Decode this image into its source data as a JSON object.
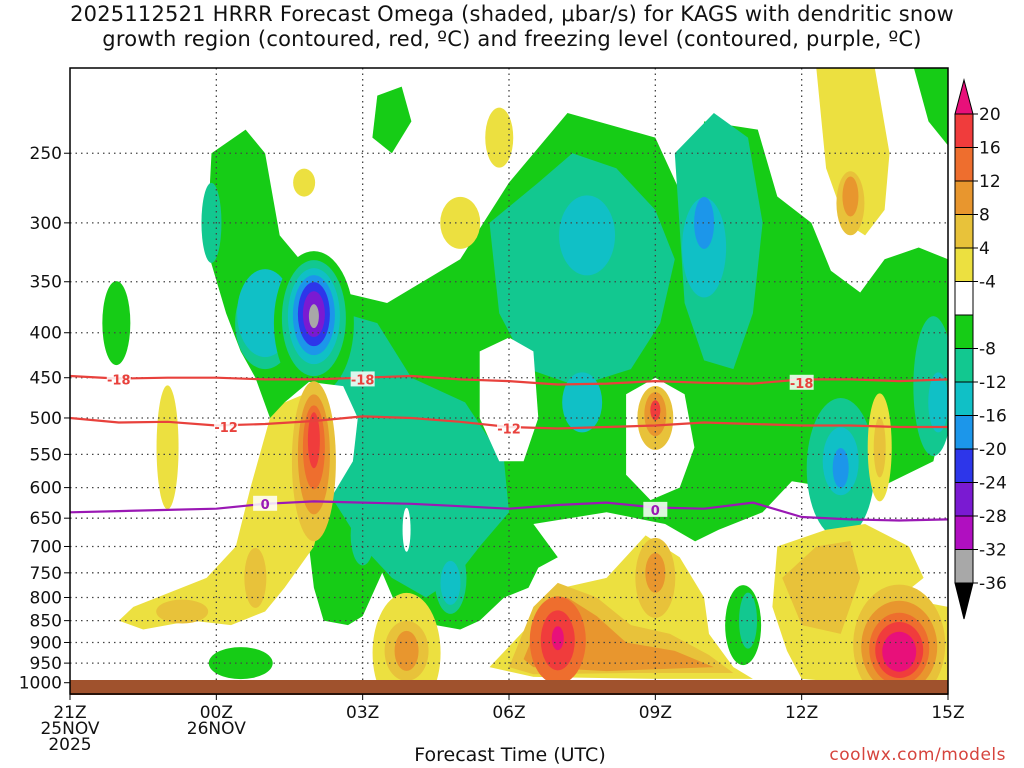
{
  "title": {
    "line1": "2025112521 HRRR Forecast Omega (shaded, μbar/s) for KAGS with dendritic snow",
    "line2": "growth region (contoured, red, ºC) and freezing level (contoured, purple, ºC)"
  },
  "credit": "coolwx.com/models",
  "chart_data": {
    "type": "time-height cross section",
    "xlabel": "Forecast Time (UTC)",
    "x_ticks": [
      {
        "hour": 0,
        "lines": [
          "21Z",
          "25NOV",
          "2025"
        ]
      },
      {
        "hour": 3,
        "lines": [
          "00Z",
          "26NOV"
        ]
      },
      {
        "hour": 6,
        "lines": [
          "03Z"
        ]
      },
      {
        "hour": 9,
        "lines": [
          "06Z"
        ]
      },
      {
        "hour": 12,
        "lines": [
          "09Z"
        ]
      },
      {
        "hour": 15,
        "lines": [
          "12Z"
        ]
      },
      {
        "hour": 18,
        "lines": [
          "15Z"
        ]
      }
    ],
    "xlim": [
      0,
      18
    ],
    "y_axis": "pressure (hPa), inverted",
    "y_ticks": [
      250,
      300,
      350,
      400,
      450,
      500,
      550,
      600,
      650,
      700,
      750,
      800,
      850,
      900,
      950,
      1000
    ],
    "ylim": [
      1030,
      200
    ],
    "grid": true,
    "colorbar": {
      "labels": [
        "20",
        "16",
        "12",
        "8",
        "4",
        "-4",
        "-8",
        "-12",
        "-16",
        "-20",
        "-24",
        "-28",
        "-32",
        "-36"
      ],
      "bins": [
        {
          "range": ">20",
          "color": "#e8107a"
        },
        {
          "range": "16 to 20",
          "color": "#f03c3c"
        },
        {
          "range": "12 to 16",
          "color": "#ee6e2e"
        },
        {
          "range": "8 to 12",
          "color": "#e8962e"
        },
        {
          "range": "4 to 8",
          "color": "#e8c23a"
        },
        {
          "range": "0 to 4",
          "color": "#ece040"
        },
        {
          "range": "-4 to 4",
          "color": "#ffffff"
        },
        {
          "range": "-8 to -4",
          "color": "#16cc16"
        },
        {
          "range": "-12 to -8",
          "color": "#12c890"
        },
        {
          "range": "-16 to -12",
          "color": "#10c0c6"
        },
        {
          "range": "-20 to -16",
          "color": "#1c96ea"
        },
        {
          "range": "-24 to -20",
          "color": "#2d36ea"
        },
        {
          "range": "-28 to -24",
          "color": "#7a1ad2"
        },
        {
          "range": "-32 to -28",
          "color": "#b00fc0"
        },
        {
          "range": "-36 to -32",
          "color": "#a8a8a8"
        },
        {
          "range": "<-36",
          "color": "#000000"
        }
      ]
    },
    "contours": [
      {
        "name": "dendritic -18C",
        "label": "-18",
        "color": "#e8413c",
        "points": [
          [
            0,
            448
          ],
          [
            1,
            451
          ],
          [
            2,
            450
          ],
          [
            3,
            450
          ],
          [
            4,
            452
          ],
          [
            5,
            452
          ],
          [
            6,
            450
          ],
          [
            7,
            448
          ],
          [
            8,
            452
          ],
          [
            9,
            454
          ],
          [
            10,
            458
          ],
          [
            11,
            457
          ],
          [
            12,
            454
          ],
          [
            13,
            456
          ],
          [
            14,
            457
          ],
          [
            15,
            452
          ],
          [
            16,
            452
          ],
          [
            17,
            454
          ],
          [
            18,
            452
          ]
        ]
      },
      {
        "name": "dendritic -12C",
        "label": "-12",
        "color": "#e8413c",
        "points": [
          [
            0,
            500
          ],
          [
            1,
            506
          ],
          [
            2,
            505
          ],
          [
            3,
            510
          ],
          [
            4,
            508
          ],
          [
            5,
            504
          ],
          [
            6,
            498
          ],
          [
            7,
            500
          ],
          [
            8,
            505
          ],
          [
            9,
            512
          ],
          [
            10,
            514
          ],
          [
            11,
            512
          ],
          [
            12,
            510
          ],
          [
            13,
            506
          ],
          [
            14,
            508
          ],
          [
            15,
            510
          ],
          [
            16,
            510
          ],
          [
            17,
            512
          ],
          [
            18,
            512
          ]
        ]
      },
      {
        "name": "freezing level 0C",
        "label": "0",
        "color": "#9a18b4",
        "points": [
          [
            0,
            640
          ],
          [
            1,
            638
          ],
          [
            2,
            636
          ],
          [
            3,
            634
          ],
          [
            4,
            626
          ],
          [
            5,
            622
          ],
          [
            6,
            624
          ],
          [
            7,
            626
          ],
          [
            8,
            630
          ],
          [
            9,
            634
          ],
          [
            10,
            628
          ],
          [
            11,
            624
          ],
          [
            12,
            632
          ],
          [
            13,
            634
          ],
          [
            14,
            624
          ],
          [
            15,
            648
          ],
          [
            16,
            652
          ],
          [
            17,
            654
          ],
          [
            18,
            652
          ]
        ]
      }
    ],
    "contour_label_positions": [
      {
        "label": "-18",
        "hour": 1.0,
        "p": 452
      },
      {
        "label": "-18",
        "hour": 6.0,
        "p": 452
      },
      {
        "label": "-18",
        "hour": 15.0,
        "p": 456
      },
      {
        "label": "-12",
        "hour": 3.2,
        "p": 512
      },
      {
        "label": "-12",
        "hour": 9.0,
        "p": 514
      },
      {
        "label": "0",
        "hour": 4.0,
        "p": 626
      },
      {
        "label": "0",
        "hour": 12.0,
        "p": 636
      }
    ],
    "omega_features": [
      {
        "value": -8,
        "color": "#16cc16",
        "desc": "broad ascent region 250-850 hPa"
      },
      {
        "value": -36,
        "color": "#a8a8a8",
        "hour": 5,
        "p": 385,
        "desc": "strongest ascent core near 02Z"
      },
      {
        "value": 20,
        "color": "#e8107a",
        "hour": 17,
        "p": 925,
        "desc": "strongest subsidence near 14Z"
      },
      {
        "value": 16,
        "color": "#f03c3c",
        "hour": 10,
        "p": 890,
        "desc": "subsidence maximum near 07Z"
      }
    ]
  }
}
